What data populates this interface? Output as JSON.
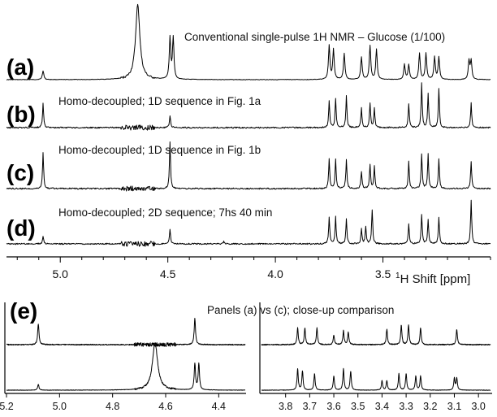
{
  "chart_data": [
    {
      "type": "line",
      "x_direction": "reversed",
      "xlim": [
        5.25,
        3.0
      ],
      "xlabel_prefix": "1",
      "xlabel": "H Shift [ppm]",
      "xticks": [
        5.0,
        4.5,
        4.0,
        3.5
      ],
      "xtick_labels": [
        "5.0",
        "4.5",
        "4.0",
        "3.5"
      ],
      "spectra": [
        {
          "panel": "(a)",
          "caption": "Conventional single-pulse 1H NMR – Glucose (1/100)",
          "peaks": [
            {
              "ppm": 5.08,
              "height": 0.12
            },
            {
              "ppm": 4.64,
              "height": 1.0
            },
            {
              "ppm": 4.49,
              "height": 0.55
            },
            {
              "ppm": 4.475,
              "height": 0.55
            },
            {
              "ppm": 3.75,
              "height": 0.45
            },
            {
              "ppm": 3.73,
              "height": 0.4
            },
            {
              "ppm": 3.68,
              "height": 0.35
            },
            {
              "ppm": 3.6,
              "height": 0.3
            },
            {
              "ppm": 3.56,
              "height": 0.45
            },
            {
              "ppm": 3.53,
              "height": 0.4
            },
            {
              "ppm": 3.4,
              "height": 0.2
            },
            {
              "ppm": 3.38,
              "height": 0.2
            },
            {
              "ppm": 3.33,
              "height": 0.35
            },
            {
              "ppm": 3.3,
              "height": 0.35
            },
            {
              "ppm": 3.26,
              "height": 0.3
            },
            {
              "ppm": 3.24,
              "height": 0.3
            },
            {
              "ppm": 3.1,
              "height": 0.25
            },
            {
              "ppm": 3.09,
              "height": 0.25
            }
          ]
        },
        {
          "panel": "(b)",
          "caption": "Homo-decoupled; 1D sequence in Fig. 1a",
          "peaks": [
            {
              "ppm": 5.08,
              "height": 0.5
            },
            {
              "ppm": 4.49,
              "height": 0.25
            },
            {
              "ppm": 3.75,
              "height": 0.55
            },
            {
              "ppm": 3.72,
              "height": 0.6
            },
            {
              "ppm": 3.67,
              "height": 0.65
            },
            {
              "ppm": 3.6,
              "height": 0.4
            },
            {
              "ppm": 3.56,
              "height": 0.5
            },
            {
              "ppm": 3.54,
              "height": 0.4
            },
            {
              "ppm": 3.38,
              "height": 0.5
            },
            {
              "ppm": 3.32,
              "height": 0.9
            },
            {
              "ppm": 3.29,
              "height": 0.7
            },
            {
              "ppm": 3.24,
              "height": 0.8
            },
            {
              "ppm": 3.09,
              "height": 0.5
            }
          ]
        },
        {
          "panel": "(c)",
          "caption": "Homo-decoupled; 1D sequence in Fig. 1b",
          "peaks": [
            {
              "ppm": 5.08,
              "height": 0.75
            },
            {
              "ppm": 4.49,
              "height": 0.95
            },
            {
              "ppm": 3.75,
              "height": 0.6
            },
            {
              "ppm": 3.72,
              "height": 0.6
            },
            {
              "ppm": 3.67,
              "height": 0.6
            },
            {
              "ppm": 3.6,
              "height": 0.35
            },
            {
              "ppm": 3.56,
              "height": 0.5
            },
            {
              "ppm": 3.54,
              "height": 0.45
            },
            {
              "ppm": 3.38,
              "height": 0.55
            },
            {
              "ppm": 3.32,
              "height": 0.7
            },
            {
              "ppm": 3.29,
              "height": 0.7
            },
            {
              "ppm": 3.24,
              "height": 0.6
            },
            {
              "ppm": 3.09,
              "height": 0.55
            }
          ]
        },
        {
          "panel": "(d)",
          "caption": "Homo-decoupled; 2D sequence; 7hs 40 min",
          "peaks": [
            {
              "ppm": 5.08,
              "height": 0.15
            },
            {
              "ppm": 4.49,
              "height": 0.3
            },
            {
              "ppm": 4.24,
              "height": 0.05
            },
            {
              "ppm": 3.75,
              "height": 0.55
            },
            {
              "ppm": 3.72,
              "height": 0.55
            },
            {
              "ppm": 3.67,
              "height": 0.5
            },
            {
              "ppm": 3.6,
              "height": 0.3
            },
            {
              "ppm": 3.58,
              "height": 0.35
            },
            {
              "ppm": 3.55,
              "height": 0.7
            },
            {
              "ppm": 3.38,
              "height": 0.4
            },
            {
              "ppm": 3.32,
              "height": 0.6
            },
            {
              "ppm": 3.29,
              "height": 0.5
            },
            {
              "ppm": 3.24,
              "height": 0.55
            },
            {
              "ppm": 3.09,
              "height": 0.9
            }
          ]
        }
      ]
    },
    {
      "type": "line",
      "panel": "(e)",
      "caption": "Panels (a) vs (c); close-up comparison",
      "subplots": [
        {
          "name": "left",
          "x_direction": "reversed",
          "xlim": [
            5.2,
            4.3
          ],
          "xticks": [
            5.2,
            5.0,
            4.8,
            4.6,
            4.4
          ],
          "xtick_labels": [
            "5.2",
            "5.0",
            "4.8",
            "4.6",
            "4.4"
          ],
          "top_trace": "(c)",
          "bottom_trace": "(a)"
        },
        {
          "name": "right",
          "x_direction": "reversed",
          "xlim": [
            3.9,
            2.95
          ],
          "xticks": [
            3.8,
            3.7,
            3.6,
            3.5,
            3.4,
            3.3,
            3.2,
            3.1,
            3.0
          ],
          "xtick_labels": [
            "3.8",
            "3.7",
            "3.6",
            "3.5",
            "3.4",
            "3.3",
            "3.2",
            "3.1",
            "3.0"
          ],
          "top_trace": "(c)",
          "bottom_trace": "(a)"
        }
      ]
    }
  ]
}
